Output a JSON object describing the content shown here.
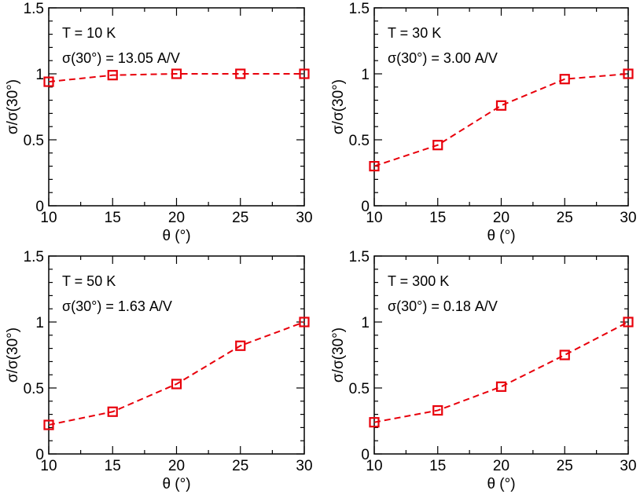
{
  "chart_data": [
    {
      "type": "line",
      "annotations": [
        "T = 10 K",
        "σ(30°) = 13.05 A/V"
      ],
      "xlabel": "θ  (°)",
      "ylabel": "σ/σ(30°)",
      "x": [
        10,
        15,
        20,
        25,
        30
      ],
      "series": [
        {
          "name": "σ/σ(30°)",
          "values": [
            0.94,
            0.99,
            1.0,
            1.0,
            1.0
          ],
          "color": "#e8000b",
          "marker": "square",
          "linestyle": "dashed"
        }
      ],
      "xlim": [
        10,
        30
      ],
      "ylim": [
        0,
        1.5
      ],
      "xticks": [
        10,
        15,
        20,
        25,
        30
      ],
      "xtick_labels": [
        "10",
        "15",
        "20",
        "25",
        "30"
      ],
      "yticks": [
        0,
        0.5,
        1,
        1.5
      ],
      "ytick_labels": [
        "0",
        "0.5",
        "1",
        "1.5"
      ]
    },
    {
      "type": "line",
      "annotations": [
        "T = 30 K",
        "σ(30°) = 3.00 A/V"
      ],
      "xlabel": "θ  (°)",
      "ylabel": "σ/σ(30°)",
      "x": [
        10,
        15,
        20,
        25,
        30
      ],
      "series": [
        {
          "name": "σ/σ(30°)",
          "values": [
            0.3,
            0.46,
            0.76,
            0.96,
            1.0
          ],
          "color": "#e8000b",
          "marker": "square",
          "linestyle": "dashed"
        }
      ],
      "xlim": [
        10,
        30
      ],
      "ylim": [
        0,
        1.5
      ],
      "xticks": [
        10,
        15,
        20,
        25,
        30
      ],
      "xtick_labels": [
        "10",
        "15",
        "20",
        "25",
        "30"
      ],
      "yticks": [
        0,
        0.5,
        1,
        1.5
      ],
      "ytick_labels": [
        "0",
        "0.5",
        "1",
        "1.5"
      ]
    },
    {
      "type": "line",
      "annotations": [
        "T = 50 K",
        "σ(30°) = 1.63 A/V"
      ],
      "xlabel": "θ  (°)",
      "ylabel": "σ/σ(30°)",
      "x": [
        10,
        15,
        20,
        25,
        30
      ],
      "series": [
        {
          "name": "σ/σ(30°)",
          "values": [
            0.22,
            0.32,
            0.53,
            0.82,
            1.0
          ],
          "color": "#e8000b",
          "marker": "square",
          "linestyle": "dashed"
        }
      ],
      "xlim": [
        10,
        30
      ],
      "ylim": [
        0,
        1.5
      ],
      "xticks": [
        10,
        15,
        20,
        25,
        30
      ],
      "xtick_labels": [
        "10",
        "15",
        "20",
        "25",
        "30"
      ],
      "yticks": [
        0,
        0.5,
        1,
        1.5
      ],
      "ytick_labels": [
        "0",
        "0.5",
        "1",
        "1.5"
      ]
    },
    {
      "type": "line",
      "annotations": [
        "T = 300 K",
        "σ(30°) = 0.18 A/V"
      ],
      "xlabel": "θ  (°)",
      "ylabel": "σ/σ(30°)",
      "x": [
        10,
        15,
        20,
        25,
        30
      ],
      "series": [
        {
          "name": "σ/σ(30°)",
          "values": [
            0.24,
            0.33,
            0.51,
            0.75,
            1.0
          ],
          "color": "#e8000b",
          "marker": "square",
          "linestyle": "dashed"
        }
      ],
      "xlim": [
        10,
        30
      ],
      "ylim": [
        0,
        1.5
      ],
      "xticks": [
        10,
        15,
        20,
        25,
        30
      ],
      "xtick_labels": [
        "10",
        "15",
        "20",
        "25",
        "30"
      ],
      "yticks": [
        0,
        0.5,
        1,
        1.5
      ],
      "ytick_labels": [
        "0",
        "0.5",
        "1",
        "1.5"
      ]
    }
  ]
}
